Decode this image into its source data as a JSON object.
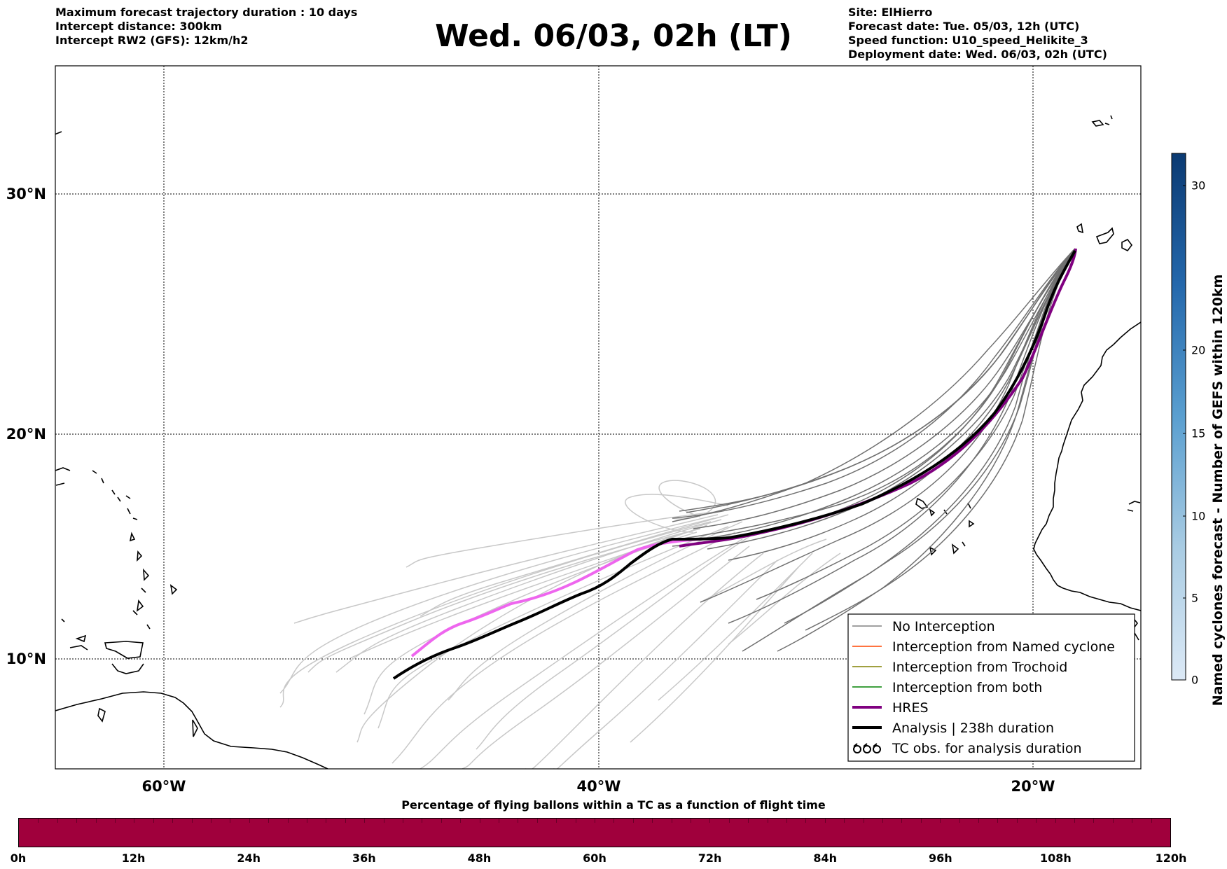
{
  "header": {
    "left_lines": [
      "Maximum forecast trajectory duration : 10 days",
      "Intercept distance: 300km",
      "Intercept RW2 (GFS):  12km/h2"
    ],
    "title": "Wed. 06/03, 02h (LT)",
    "right_lines": [
      "Site: ElHierro",
      "Forecast date: Tue. 05/03, 12h (UTC)",
      "Speed function: U10_speed_Helikite_3",
      "Deployment date: Wed. 06/03, 02h (UTC)"
    ]
  },
  "map": {
    "lon_labels": [
      "60°W",
      "40°W",
      "20°W"
    ],
    "lat_labels": [
      "30°N",
      "20°N",
      "10°N"
    ],
    "colors": {
      "no_interception": "#808080",
      "named_cyclone": "#ff4500",
      "trochoid": "#808000",
      "both": "#008000",
      "hres": "#800080",
      "analysis": "#000000",
      "ensemble_light": "#c8c8c8",
      "pink_segment": "#ee66ee"
    }
  },
  "legend": {
    "items": [
      {
        "label": "No Interception",
        "icon": "line-gray"
      },
      {
        "label": "Interception from Named cyclone",
        "icon": "line-orange"
      },
      {
        "label": "Interception from Trochoid",
        "icon": "line-olive"
      },
      {
        "label": "Interception from both",
        "icon": "line-green"
      },
      {
        "label": "HRES",
        "icon": "line-purple-thick"
      },
      {
        "label": "Analysis | 238h duration",
        "icon": "line-black-thick"
      },
      {
        "label": "TC obs. for analysis duration",
        "icon": "cyclone-symbols"
      }
    ]
  },
  "colorbar": {
    "title": "Named cyclones forecast - Number of GEFS within 120km",
    "ticks": [
      "0",
      "5",
      "10",
      "15",
      "20",
      "30"
    ]
  },
  "time_bar": {
    "title": "Percentage of flying ballons within a TC as a function of flight time",
    "labels": [
      "0h",
      "12h",
      "24h",
      "36h",
      "48h",
      "60h",
      "72h",
      "84h",
      "96h",
      "108h",
      "120h"
    ],
    "color": "#a0003c"
  }
}
